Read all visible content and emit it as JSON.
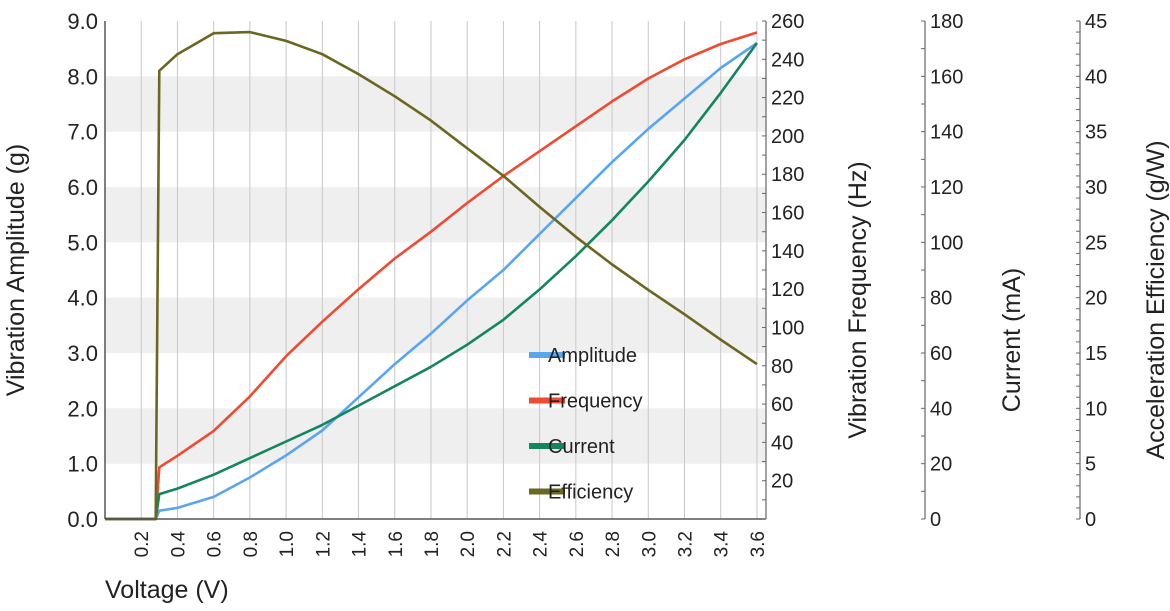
{
  "chart_data": {
    "type": "line",
    "xlabel": "Voltage (V)",
    "xlim": [
      0,
      3.65
    ],
    "xticks": [
      "0.2",
      "0.4",
      "0.6",
      "0.8",
      "1.0",
      "1.2",
      "1.4",
      "1.6",
      "1.8",
      "2.0",
      "2.2",
      "2.4",
      "2.6",
      "2.8",
      "3.0",
      "3.2",
      "3.4",
      "3.6"
    ],
    "grid": "vertical lines with alternating horizontal gray bands",
    "legend_position": "lower-center-right",
    "axes": [
      {
        "id": "amp",
        "label": "Vibration Amplitude (g)",
        "side": "left",
        "ylim": [
          0,
          9
        ],
        "ticks": [
          "0.0",
          "1.0",
          "2.0",
          "3.0",
          "4.0",
          "5.0",
          "6.0",
          "7.0",
          "8.0",
          "9.0"
        ]
      },
      {
        "id": "freq",
        "label": "Vibration Frequency (Hz)",
        "side": "right",
        "ylim": [
          0,
          260
        ],
        "ticks": [
          "20",
          "40",
          "60",
          "80",
          "100",
          "120",
          "140",
          "160",
          "180",
          "200",
          "220",
          "240",
          "260"
        ]
      },
      {
        "id": "cur",
        "label": "Current (mA)",
        "side": "right",
        "ylim": [
          0,
          180
        ],
        "ticks": [
          "0",
          "20",
          "40",
          "60",
          "80",
          "100",
          "120",
          "140",
          "160",
          "180"
        ]
      },
      {
        "id": "eff",
        "label": "Acceleration Efficiency (g/W)",
        "side": "right",
        "ylim": [
          0,
          45
        ],
        "ticks": [
          "0",
          "5",
          "10",
          "15",
          "20",
          "25",
          "30",
          "35",
          "40",
          "45"
        ]
      }
    ],
    "x": [
      0,
      0.28,
      0.3,
      0.4,
      0.6,
      0.8,
      1.0,
      1.2,
      1.4,
      1.6,
      1.8,
      2.0,
      2.2,
      2.4,
      2.6,
      2.8,
      3.0,
      3.2,
      3.4,
      3.6
    ],
    "series": [
      {
        "name": "Amplitude",
        "axis": "amp",
        "color": "#5aa5f0",
        "values": [
          0,
          0,
          0.15,
          0.2,
          0.4,
          0.75,
          1.15,
          1.6,
          2.2,
          2.8,
          3.35,
          3.95,
          4.5,
          5.15,
          5.8,
          6.45,
          7.05,
          7.6,
          8.15,
          8.6
        ]
      },
      {
        "name": "Frequency",
        "axis": "freq",
        "color": "#f04a30",
        "values": [
          0,
          0,
          27,
          33,
          46,
          64,
          85,
          103,
          120,
          136,
          150,
          165,
          179,
          192,
          205,
          218,
          230,
          240,
          248,
          254
        ]
      },
      {
        "name": "Current",
        "axis": "cur",
        "color": "#13865f",
        "values": [
          0,
          0,
          9,
          11,
          16,
          22,
          28,
          34,
          41,
          48,
          55,
          63,
          72,
          83,
          95,
          108,
          122,
          137,
          154,
          172
        ]
      },
      {
        "name": "Efficiency",
        "axis": "eff",
        "color": "#6b6620",
        "values": [
          0,
          0,
          40.5,
          42,
          43.9,
          44,
          43.2,
          42,
          40.2,
          38.2,
          36,
          33.5,
          31,
          28.2,
          25.5,
          23,
          20.7,
          18.5,
          16.2,
          14
        ]
      }
    ]
  }
}
